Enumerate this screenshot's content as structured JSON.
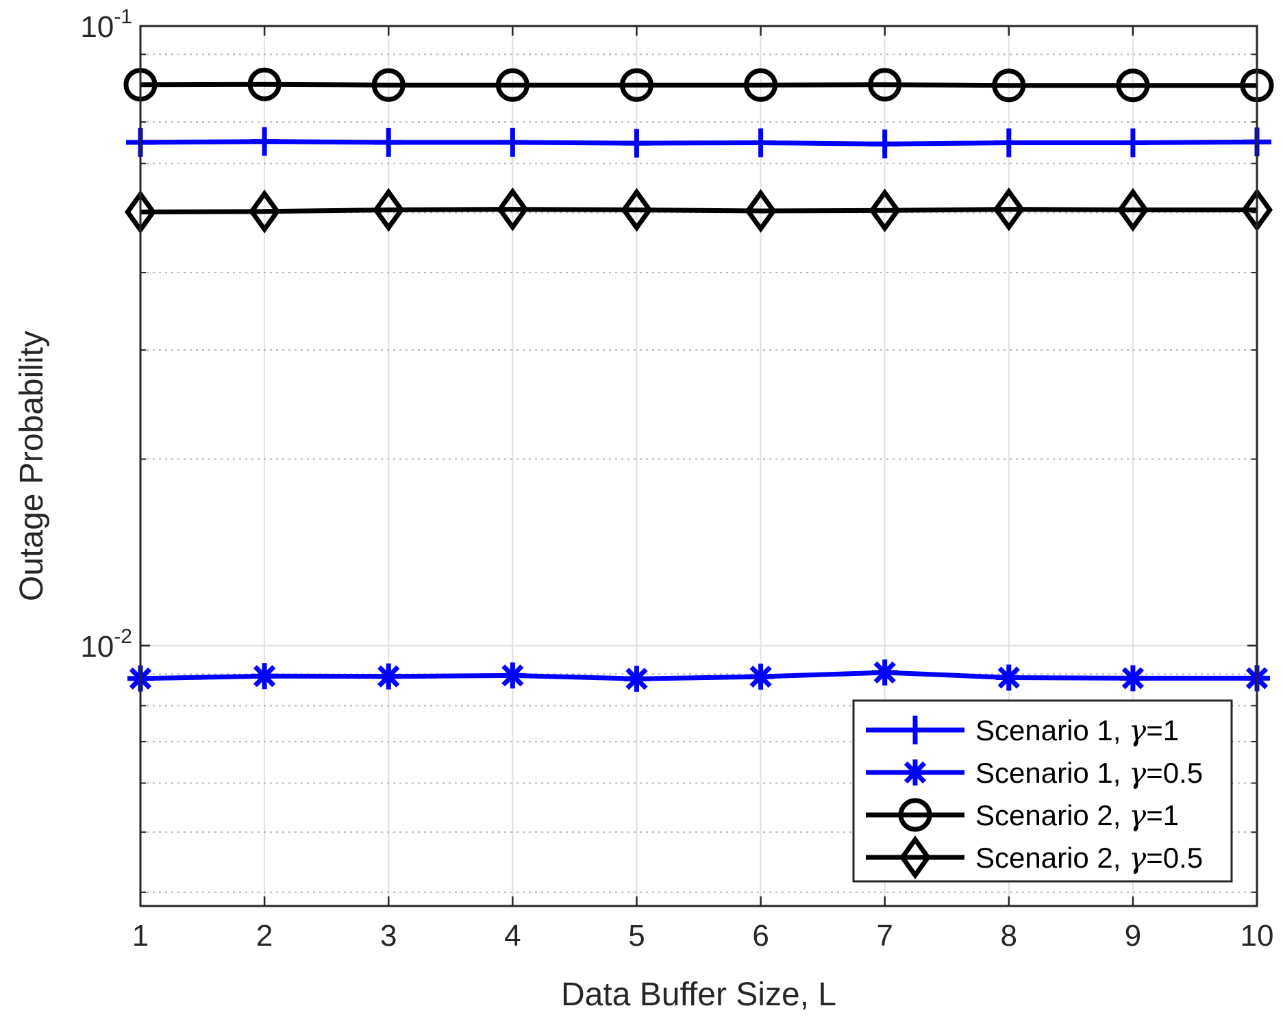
{
  "chart_data": {
    "type": "line",
    "xlabel": "Data Buffer Size, L",
    "ylabel": "Outage Probability",
    "x": [
      1,
      2,
      3,
      4,
      5,
      6,
      7,
      8,
      9,
      10
    ],
    "xlim": [
      1,
      10
    ],
    "ylim": [
      0.0038,
      0.1
    ],
    "yscale": "log",
    "x_ticks": [
      "1",
      "2",
      "3",
      "4",
      "5",
      "6",
      "7",
      "8",
      "9",
      "10"
    ],
    "y_ticks": [
      {
        "value": 0.01,
        "base": "10",
        "exp": "-2"
      },
      {
        "value": 0.1,
        "base": "10",
        "exp": "-1"
      }
    ],
    "grid": true,
    "legend_position": "bottom-right",
    "series": [
      {
        "name_prefix": "Scenario 1, ",
        "name_symbol": "γ",
        "name_suffix": "=1",
        "color": "#0000ff",
        "marker": "plus",
        "values": [
          0.0649,
          0.0651,
          0.0649,
          0.0649,
          0.0647,
          0.0648,
          0.0645,
          0.0648,
          0.0648,
          0.065
        ]
      },
      {
        "name_prefix": "Scenario 1, ",
        "name_symbol": "γ",
        "name_suffix": "=0.5",
        "color": "#0000ff",
        "marker": "asterisk",
        "values": [
          0.00885,
          0.00893,
          0.00892,
          0.00895,
          0.00884,
          0.00891,
          0.00905,
          0.00888,
          0.00886,
          0.00886
        ]
      },
      {
        "name_prefix": "Scenario 2, ",
        "name_symbol": "γ",
        "name_suffix": "=1",
        "color": "#000000",
        "marker": "circle",
        "values": [
          0.0804,
          0.0805,
          0.0803,
          0.0803,
          0.0803,
          0.0803,
          0.0804,
          0.0802,
          0.0802,
          0.0802
        ]
      },
      {
        "name_prefix": "Scenario 2, ",
        "name_symbol": "γ",
        "name_suffix": "=0.5",
        "color": "#000000",
        "marker": "diamond",
        "values": [
          0.0501,
          0.0502,
          0.0505,
          0.0506,
          0.0505,
          0.0503,
          0.0504,
          0.0506,
          0.0505,
          0.0505
        ]
      }
    ]
  }
}
